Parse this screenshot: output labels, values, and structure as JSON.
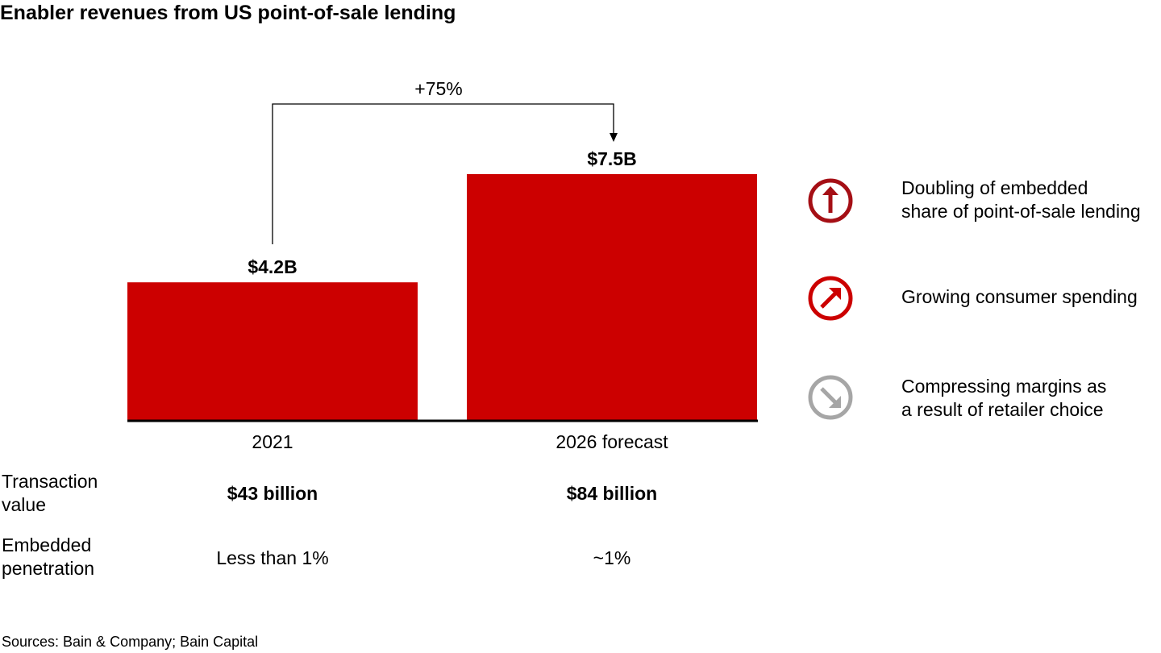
{
  "title": "Enabler revenues from US point-of-sale lending",
  "chart_data": {
    "type": "bar",
    "categories": [
      "2021",
      "2026 forecast"
    ],
    "series": [
      {
        "values": [
          4.2,
          7.5
        ]
      }
    ],
    "data_labels": [
      "$4.2B",
      "$7.5B"
    ],
    "growth_annotation": "+75%",
    "ylim": [
      0,
      7.5
    ],
    "colors": {
      "bar": "#cc0000",
      "axis": "#000000"
    },
    "grid": false
  },
  "table": {
    "rows": [
      {
        "label_line1": "Transaction",
        "label_line2": "value",
        "values": [
          "$43 billion",
          "$84 billion"
        ]
      },
      {
        "label_line1": "Embedded",
        "label_line2": "penetration",
        "values": [
          "Less than 1%",
          "~1%"
        ]
      }
    ]
  },
  "drivers": [
    {
      "icon": "arrow-up-circle-icon",
      "color": "#a50f15",
      "line1": "Doubling of embedded",
      "line2": "share of point-of-sale lending"
    },
    {
      "icon": "arrow-up-right-circle-icon",
      "color": "#cc0000",
      "line1": "Growing consumer spending",
      "line2": ""
    },
    {
      "icon": "arrow-down-right-circle-icon",
      "color": "#a6a6a6",
      "line1": "Compressing margins as",
      "line2": "a result of retailer choice"
    }
  ],
  "source": "Sources: Bain & Company; Bain Capital"
}
